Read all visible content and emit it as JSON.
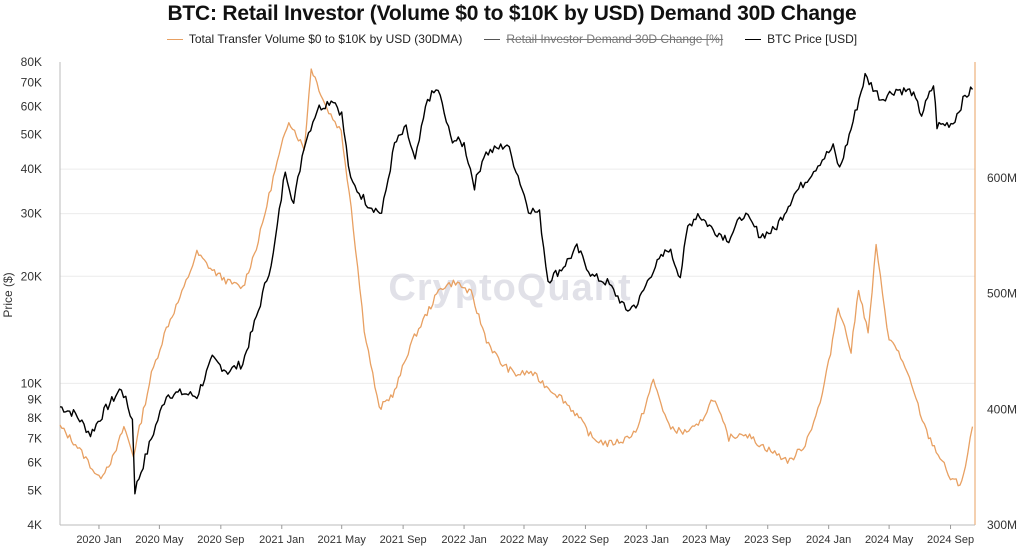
{
  "title": "BTC: Retail Investor (Volume $0 to $10K by USD) Demand 30D Change",
  "watermark": "CryptoQuant",
  "legend": [
    {
      "label": "Total Transfer Volume $0 to $10K by USD (30DMA)",
      "color": "#e8a062",
      "enabled": true
    },
    {
      "label": "Retail Investor Demand 30D Change [%]",
      "color": "#555555",
      "enabled": false
    },
    {
      "label": "BTC Price [USD]",
      "color": "#000000",
      "enabled": true
    }
  ],
  "chart_data": {
    "type": "line",
    "title": "BTC: Retail Investor (Volume $0 to $10K by USD) Demand 30D Change",
    "x_ticks": [
      "2020 Jan",
      "2020 May",
      "2020 Sep",
      "2021 Jan",
      "2021 May",
      "2021 Sep",
      "2022 Jan",
      "2022 May",
      "2022 Sep",
      "2023 Jan",
      "2023 May",
      "2023 Sep",
      "2024 Jan",
      "2024 May",
      "2024 Sep"
    ],
    "y_left": {
      "label": "Price ($)",
      "scale": "log",
      "range": [
        4000,
        80000
      ],
      "ticks": [
        {
          "v": 4000,
          "label": "4K"
        },
        {
          "v": 5000,
          "label": "5K"
        },
        {
          "v": 6000,
          "label": "6K"
        },
        {
          "v": 7000,
          "label": "7K"
        },
        {
          "v": 8000,
          "label": "8K"
        },
        {
          "v": 9000,
          "label": "9K"
        },
        {
          "v": 10000,
          "label": "10K"
        },
        {
          "v": 20000,
          "label": "20K"
        },
        {
          "v": 30000,
          "label": "30K"
        },
        {
          "v": 40000,
          "label": "40K"
        },
        {
          "v": 50000,
          "label": "50K"
        },
        {
          "v": 60000,
          "label": "60K"
        },
        {
          "v": 70000,
          "label": "70K"
        },
        {
          "v": 80000,
          "label": "80K"
        }
      ]
    },
    "y_right": {
      "label": "",
      "scale": "linear",
      "range": [
        300,
        700
      ],
      "ticks": [
        {
          "v": 300,
          "label": "300M"
        },
        {
          "v": 400,
          "label": "400M"
        },
        {
          "v": 500,
          "label": "500M"
        },
        {
          "v": 600,
          "label": "600M"
        }
      ]
    },
    "grid": true,
    "series": [
      {
        "name": "BTC Price [USD]",
        "axis": "left",
        "color": "#000000",
        "x": [
          "2019-10-15",
          "2019-11-15",
          "2019-12-15",
          "2020-01-15",
          "2020-02-15",
          "2020-03-08",
          "2020-03-13",
          "2020-04-15",
          "2020-05-15",
          "2020-06-15",
          "2020-07-15",
          "2020-08-15",
          "2020-09-15",
          "2020-10-15",
          "2020-11-15",
          "2020-12-15",
          "2021-01-08",
          "2021-01-25",
          "2021-02-15",
          "2021-03-13",
          "2021-04-14",
          "2021-05-01",
          "2021-05-19",
          "2021-06-22",
          "2021-07-20",
          "2021-08-15",
          "2021-09-07",
          "2021-09-25",
          "2021-10-20",
          "2021-11-10",
          "2021-12-05",
          "2022-01-01",
          "2022-01-22",
          "2022-02-10",
          "2022-03-28",
          "2022-04-15",
          "2022-05-10",
          "2022-06-01",
          "2022-06-18",
          "2022-07-15",
          "2022-08-15",
          "2022-09-15",
          "2022-10-15",
          "2022-11-09",
          "2022-11-21",
          "2022-12-15",
          "2023-01-15",
          "2023-02-15",
          "2023-03-10",
          "2023-03-25",
          "2023-04-14",
          "2023-05-15",
          "2023-06-15",
          "2023-07-15",
          "2023-08-18",
          "2023-09-15",
          "2023-10-24",
          "2023-11-15",
          "2023-12-15",
          "2024-01-10",
          "2024-01-23",
          "2024-02-15",
          "2024-03-14",
          "2024-04-15",
          "2024-05-15",
          "2024-06-15",
          "2024-07-05",
          "2024-07-29",
          "2024-08-05",
          "2024-09-06",
          "2024-09-30",
          "2024-10-15"
        ],
        "values": [
          8600,
          8200,
          7200,
          8500,
          9700,
          7900,
          5000,
          7000,
          9300,
          9400,
          9200,
          11700,
          10800,
          11400,
          16000,
          23000,
          40000,
          32000,
          47000,
          59000,
          63000,
          57000,
          37000,
          32000,
          30000,
          47000,
          52000,
          42000,
          63000,
          67000,
          49000,
          47000,
          36000,
          44000,
          47000,
          40000,
          31000,
          30000,
          19500,
          21000,
          24000,
          20000,
          19200,
          17200,
          16000,
          16800,
          21000,
          24000,
          20000,
          27500,
          30000,
          27000,
          25500,
          30000,
          26000,
          27000,
          34000,
          37000,
          42000,
          46000,
          40000,
          52000,
          73000,
          63000,
          67000,
          66000,
          57000,
          69000,
          53000,
          54000,
          64000,
          67000
        ]
      },
      {
        "name": "Total Transfer Volume $0 to $10K by USD (30DMA)",
        "axis": "right",
        "color": "#e8a062",
        "x": [
          "2019-10-15",
          "2019-11-15",
          "2019-12-10",
          "2020-01-01",
          "2020-02-01",
          "2020-02-20",
          "2020-03-10",
          "2020-04-15",
          "2020-05-15",
          "2020-06-15",
          "2020-07-15",
          "2020-08-15",
          "2020-09-15",
          "2020-10-15",
          "2020-11-15",
          "2020-12-15",
          "2021-01-15",
          "2021-02-15",
          "2021-03-01",
          "2021-04-01",
          "2021-04-30",
          "2021-05-20",
          "2021-06-15",
          "2021-07-15",
          "2021-08-15",
          "2021-09-15",
          "2021-10-15",
          "2021-11-15",
          "2021-12-15",
          "2022-01-15",
          "2022-02-15",
          "2022-03-15",
          "2022-04-15",
          "2022-05-15",
          "2022-06-15",
          "2022-07-15",
          "2022-08-15",
          "2022-09-15",
          "2022-10-15",
          "2022-11-15",
          "2022-12-15",
          "2023-01-15",
          "2023-02-15",
          "2023-03-15",
          "2023-04-15",
          "2023-05-15",
          "2023-06-15",
          "2023-07-15",
          "2023-08-15",
          "2023-09-15",
          "2023-10-15",
          "2023-11-15",
          "2023-12-15",
          "2024-01-01",
          "2024-01-20",
          "2024-02-15",
          "2024-03-01",
          "2024-03-20",
          "2024-04-05",
          "2024-05-01",
          "2024-05-20",
          "2024-06-15",
          "2024-07-15",
          "2024-08-15",
          "2024-09-01",
          "2024-09-20",
          "2024-10-01",
          "2024-10-15"
        ],
        "values": [
          385,
          370,
          355,
          340,
          360,
          385,
          360,
          430,
          470,
          500,
          535,
          520,
          510,
          505,
          545,
          600,
          650,
          625,
          695,
          660,
          640,
          575,
          470,
          400,
          415,
          455,
          480,
          505,
          510,
          500,
          460,
          440,
          430,
          432,
          420,
          410,
          395,
          375,
          370,
          373,
          383,
          425,
          385,
          380,
          385,
          410,
          375,
          380,
          370,
          362,
          355,
          370,
          405,
          440,
          490,
          450,
          505,
          465,
          540,
          460,
          450,
          420,
          380,
          355,
          340,
          335,
          350,
          385
        ]
      }
    ]
  }
}
